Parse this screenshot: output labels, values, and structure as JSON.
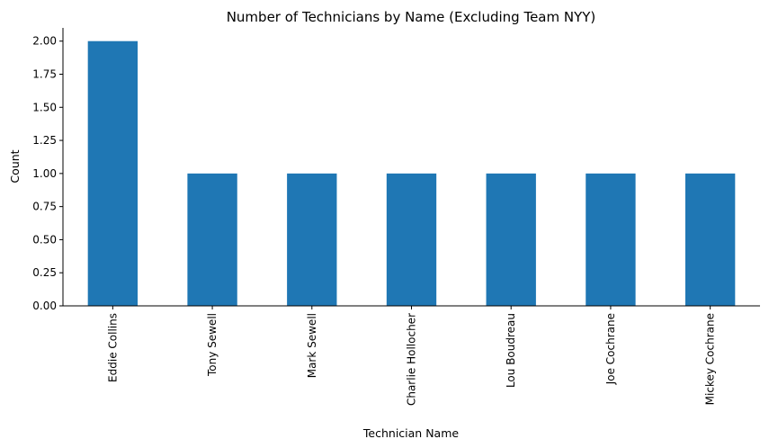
{
  "chart_data": {
    "type": "bar",
    "title": "Number of Technicians by Name (Excluding Team NYY)",
    "xlabel": "Technician Name",
    "ylabel": "Count",
    "categories": [
      "Eddie Collins",
      "Tony Sewell",
      "Mark Sewell",
      "Charlie Hollocher",
      "Lou Boudreau",
      "Joe Cochrane",
      "Mickey Cochrane"
    ],
    "values": [
      2,
      1,
      1,
      1,
      1,
      1,
      1
    ],
    "ylim": [
      0,
      2.1
    ],
    "yticks": [
      "0.00",
      "0.25",
      "0.50",
      "0.75",
      "1.00",
      "1.25",
      "1.50",
      "1.75",
      "2.00"
    ],
    "bar_color": "#1f77b4",
    "grid": false,
    "legend": "none"
  }
}
